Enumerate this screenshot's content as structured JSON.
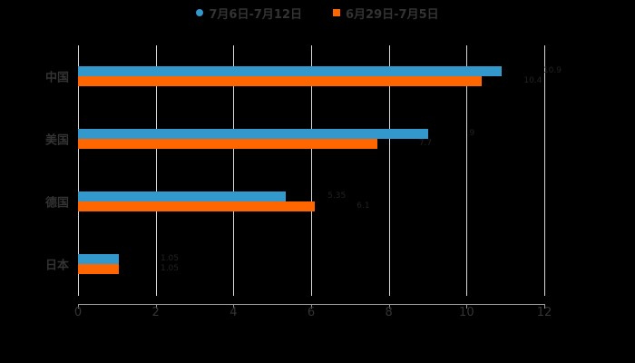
{
  "chart_data": {
    "type": "bar",
    "orientation": "horizontal",
    "title": "",
    "xlabel": "",
    "ylabel": "",
    "categories": [
      "中国",
      "美国",
      "德国",
      "日本"
    ],
    "series": [
      {
        "name": "7月6日-7月12日",
        "color": "#3399cc",
        "values": [
          10.9,
          9.0,
          5.35,
          1.05
        ]
      },
      {
        "name": "6月29日-7月5日",
        "color": "#ff6600",
        "values": [
          10.4,
          7.7,
          6.1,
          1.05
        ]
      }
    ],
    "xlim": [
      0,
      12
    ],
    "xticks": [
      "0",
      "2",
      "4",
      "6",
      "8",
      "10",
      "12"
    ],
    "grid": true,
    "legend_position": "top",
    "background": "#000000"
  },
  "legend": {
    "items": [
      {
        "label": "7月6日-7月12日",
        "color": "#3399cc",
        "shape": "circle"
      },
      {
        "label": "6月29日-7月5日",
        "color": "#ff6600",
        "shape": "square"
      }
    ]
  }
}
